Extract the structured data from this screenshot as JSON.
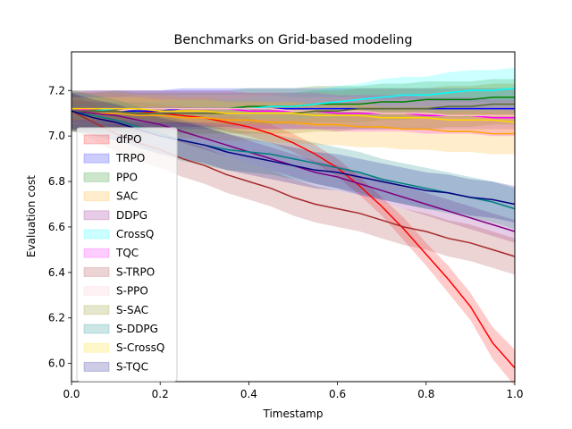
{
  "chart_data": {
    "type": "line",
    "title": "Benchmarks on Grid-based modeling",
    "xlabel": "Timestamp",
    "ylabel": "Evaluation cost",
    "xlim": [
      0.0,
      1.0
    ],
    "ylim": [
      5.92,
      7.37
    ],
    "x_ticks": [
      0.0,
      0.2,
      0.4,
      0.6,
      0.8,
      1.0
    ],
    "x_tick_labels": [
      "0.0",
      "0.2",
      "0.4",
      "0.6",
      "0.8",
      "1.0"
    ],
    "y_ticks": [
      6.0,
      6.2,
      6.4,
      6.6,
      6.8,
      7.0,
      7.2
    ],
    "y_tick_labels": [
      "6.0",
      "6.2",
      "6.4",
      "6.6",
      "6.8",
      "7.0",
      "7.2"
    ],
    "grid": false,
    "legend_position": "center-left",
    "legend_style": "shaded-band patches",
    "x": [
      0.0,
      0.05,
      0.1,
      0.15,
      0.2,
      0.25,
      0.3,
      0.35,
      0.4,
      0.45,
      0.5,
      0.55,
      0.6,
      0.65,
      0.7,
      0.75,
      0.8,
      0.85,
      0.9,
      0.95,
      1.0
    ],
    "series": [
      {
        "name": "dfPO",
        "color": "#ff0000",
        "band_color": "#ff0000",
        "values": [
          7.11,
          7.11,
          7.11,
          7.11,
          7.1,
          7.09,
          7.08,
          7.06,
          7.04,
          7.01,
          6.97,
          6.92,
          6.86,
          6.78,
          6.69,
          6.59,
          6.48,
          6.37,
          6.25,
          6.09,
          5.98
        ],
        "band_width": [
          0.04,
          0.04,
          0.04,
          0.04,
          0.04,
          0.04,
          0.04,
          0.04,
          0.04,
          0.04,
          0.04,
          0.04,
          0.04,
          0.04,
          0.04,
          0.05,
          0.05,
          0.06,
          0.06,
          0.07,
          0.08
        ]
      },
      {
        "name": "TRPO",
        "color": "#0000ff",
        "band_color": "#0000ff",
        "values": [
          7.11,
          7.11,
          7.11,
          7.11,
          7.11,
          7.12,
          7.12,
          7.12,
          7.12,
          7.12,
          7.12,
          7.12,
          7.12,
          7.12,
          7.12,
          7.12,
          7.12,
          7.12,
          7.12,
          7.12,
          7.12
        ],
        "band_width": [
          0.09,
          0.09,
          0.09,
          0.09,
          0.09,
          0.09,
          0.09,
          0.09,
          0.09,
          0.09,
          0.09,
          0.09,
          0.09,
          0.09,
          0.09,
          0.09,
          0.09,
          0.09,
          0.09,
          0.09,
          0.09
        ]
      },
      {
        "name": "PPO",
        "color": "#008000",
        "band_color": "#008000",
        "values": [
          7.11,
          7.11,
          7.12,
          7.12,
          7.12,
          7.12,
          7.12,
          7.12,
          7.13,
          7.13,
          7.13,
          7.14,
          7.14,
          7.14,
          7.15,
          7.15,
          7.16,
          7.16,
          7.16,
          7.17,
          7.17
        ],
        "band_width": [
          0.08,
          0.08,
          0.08,
          0.08,
          0.08,
          0.08,
          0.08,
          0.08,
          0.08,
          0.08,
          0.08,
          0.08,
          0.08,
          0.08,
          0.08,
          0.08,
          0.08,
          0.08,
          0.08,
          0.08,
          0.08
        ]
      },
      {
        "name": "SAC",
        "color": "#ffa500",
        "band_color": "#ffa500",
        "values": [
          7.11,
          7.1,
          7.1,
          7.09,
          7.09,
          7.08,
          7.08,
          7.07,
          7.07,
          7.06,
          7.06,
          7.05,
          7.05,
          7.04,
          7.04,
          7.03,
          7.03,
          7.02,
          7.02,
          7.01,
          7.01
        ],
        "band_width": [
          0.09,
          0.09,
          0.09,
          0.09,
          0.09,
          0.09,
          0.09,
          0.09,
          0.09,
          0.09,
          0.09,
          0.09,
          0.09,
          0.09,
          0.09,
          0.09,
          0.09,
          0.09,
          0.09,
          0.09,
          0.09
        ]
      },
      {
        "name": "DDPG",
        "color": "#800080",
        "band_color": "#800080",
        "values": [
          7.11,
          7.1,
          7.09,
          7.07,
          7.05,
          7.02,
          6.99,
          6.96,
          6.93,
          6.9,
          6.87,
          6.84,
          6.82,
          6.79,
          6.76,
          6.73,
          6.7,
          6.67,
          6.64,
          6.61,
          6.58
        ],
        "band_width": [
          0.05,
          0.05,
          0.05,
          0.05,
          0.05,
          0.05,
          0.05,
          0.05,
          0.05,
          0.05,
          0.05,
          0.05,
          0.05,
          0.05,
          0.05,
          0.05,
          0.05,
          0.05,
          0.05,
          0.05,
          0.05
        ]
      },
      {
        "name": "CrossQ",
        "color": "#00ffff",
        "band_color": "#00ffff",
        "values": [
          7.11,
          7.11,
          7.12,
          7.12,
          7.12,
          7.12,
          7.12,
          7.12,
          7.12,
          7.13,
          7.13,
          7.14,
          7.15,
          7.16,
          7.17,
          7.18,
          7.18,
          7.19,
          7.2,
          7.2,
          7.21
        ],
        "band_width": [
          0.03,
          0.03,
          0.03,
          0.03,
          0.03,
          0.04,
          0.04,
          0.04,
          0.05,
          0.05,
          0.06,
          0.06,
          0.07,
          0.07,
          0.08,
          0.08,
          0.08,
          0.09,
          0.09,
          0.09,
          0.09
        ]
      },
      {
        "name": "TQC",
        "color": "#ff00ff",
        "band_color": "#ff00ff",
        "values": [
          7.11,
          7.12,
          7.12,
          7.12,
          7.12,
          7.12,
          7.12,
          7.12,
          7.11,
          7.11,
          7.11,
          7.11,
          7.1,
          7.1,
          7.1,
          7.1,
          7.09,
          7.09,
          7.09,
          7.08,
          7.08
        ],
        "band_width": [
          0.08,
          0.08,
          0.08,
          0.08,
          0.08,
          0.08,
          0.08,
          0.08,
          0.08,
          0.08,
          0.08,
          0.08,
          0.08,
          0.08,
          0.08,
          0.08,
          0.08,
          0.08,
          0.08,
          0.08,
          0.08
        ]
      },
      {
        "name": "S-TRPO",
        "color": "#a52a2a",
        "band_color": "#a52a2a",
        "values": [
          7.11,
          7.06,
          7.01,
          6.97,
          6.94,
          6.9,
          6.87,
          6.83,
          6.8,
          6.77,
          6.73,
          6.7,
          6.68,
          6.66,
          6.63,
          6.6,
          6.58,
          6.55,
          6.53,
          6.5,
          6.47
        ],
        "band_width": [
          0.08,
          0.08,
          0.08,
          0.08,
          0.08,
          0.08,
          0.08,
          0.08,
          0.08,
          0.08,
          0.08,
          0.08,
          0.08,
          0.08,
          0.08,
          0.08,
          0.08,
          0.08,
          0.08,
          0.08,
          0.08
        ]
      },
      {
        "name": "S-PPO",
        "color": "#ffc0cb",
        "band_color": "#ffc0cb",
        "values": [
          7.11,
          7.11,
          7.11,
          7.12,
          7.12,
          7.12,
          7.12,
          7.12,
          7.12,
          7.12,
          7.11,
          7.11,
          7.11,
          7.11,
          7.1,
          7.1,
          7.1,
          7.09,
          7.09,
          7.09,
          7.09
        ],
        "band_width": [
          0.06,
          0.06,
          0.06,
          0.06,
          0.06,
          0.06,
          0.06,
          0.06,
          0.06,
          0.06,
          0.06,
          0.06,
          0.06,
          0.06,
          0.06,
          0.06,
          0.06,
          0.06,
          0.06,
          0.06,
          0.06
        ]
      },
      {
        "name": "S-SAC",
        "color": "#556b2f",
        "band_color": "#808000",
        "values": [
          7.11,
          7.11,
          7.11,
          7.1,
          7.1,
          7.1,
          7.1,
          7.1,
          7.1,
          7.1,
          7.1,
          7.11,
          7.11,
          7.12,
          7.12,
          7.12,
          7.12,
          7.13,
          7.13,
          7.14,
          7.14
        ],
        "band_width": [
          0.09,
          0.09,
          0.09,
          0.09,
          0.09,
          0.09,
          0.09,
          0.09,
          0.09,
          0.09,
          0.09,
          0.09,
          0.09,
          0.09,
          0.09,
          0.09,
          0.09,
          0.09,
          0.09,
          0.09,
          0.09
        ]
      },
      {
        "name": "S-DDPG",
        "color": "#008080",
        "band_color": "#008080",
        "values": [
          7.11,
          7.09,
          7.07,
          7.04,
          7.01,
          6.98,
          6.96,
          6.94,
          6.93,
          6.92,
          6.9,
          6.88,
          6.86,
          6.84,
          6.81,
          6.79,
          6.77,
          6.75,
          6.73,
          6.71,
          6.68
        ],
        "band_width": [
          0.09,
          0.09,
          0.09,
          0.09,
          0.09,
          0.09,
          0.09,
          0.09,
          0.09,
          0.09,
          0.09,
          0.09,
          0.09,
          0.09,
          0.09,
          0.09,
          0.09,
          0.09,
          0.09,
          0.09,
          0.09
        ]
      },
      {
        "name": "S-CrossQ",
        "color": "#ffd700",
        "band_color": "#ffd700",
        "values": [
          7.12,
          7.12,
          7.12,
          7.12,
          7.11,
          7.11,
          7.11,
          7.1,
          7.1,
          7.1,
          7.1,
          7.09,
          7.09,
          7.09,
          7.08,
          7.08,
          7.08,
          7.07,
          7.07,
          7.07,
          7.06
        ],
        "band_width": [
          0.05,
          0.05,
          0.05,
          0.05,
          0.05,
          0.05,
          0.05,
          0.05,
          0.05,
          0.05,
          0.05,
          0.05,
          0.05,
          0.05,
          0.05,
          0.05,
          0.05,
          0.05,
          0.05,
          0.05,
          0.05
        ]
      },
      {
        "name": "S-TQC",
        "color": "#000080",
        "band_color": "#000080",
        "values": [
          7.11,
          7.08,
          7.06,
          7.03,
          7.0,
          6.98,
          6.96,
          6.93,
          6.91,
          6.89,
          6.87,
          6.85,
          6.84,
          6.82,
          6.8,
          6.78,
          6.76,
          6.75,
          6.73,
          6.72,
          6.7
        ],
        "band_width": [
          0.08,
          0.08,
          0.08,
          0.08,
          0.08,
          0.08,
          0.08,
          0.08,
          0.08,
          0.08,
          0.08,
          0.08,
          0.08,
          0.08,
          0.08,
          0.08,
          0.08,
          0.08,
          0.08,
          0.08,
          0.08
        ]
      }
    ]
  }
}
